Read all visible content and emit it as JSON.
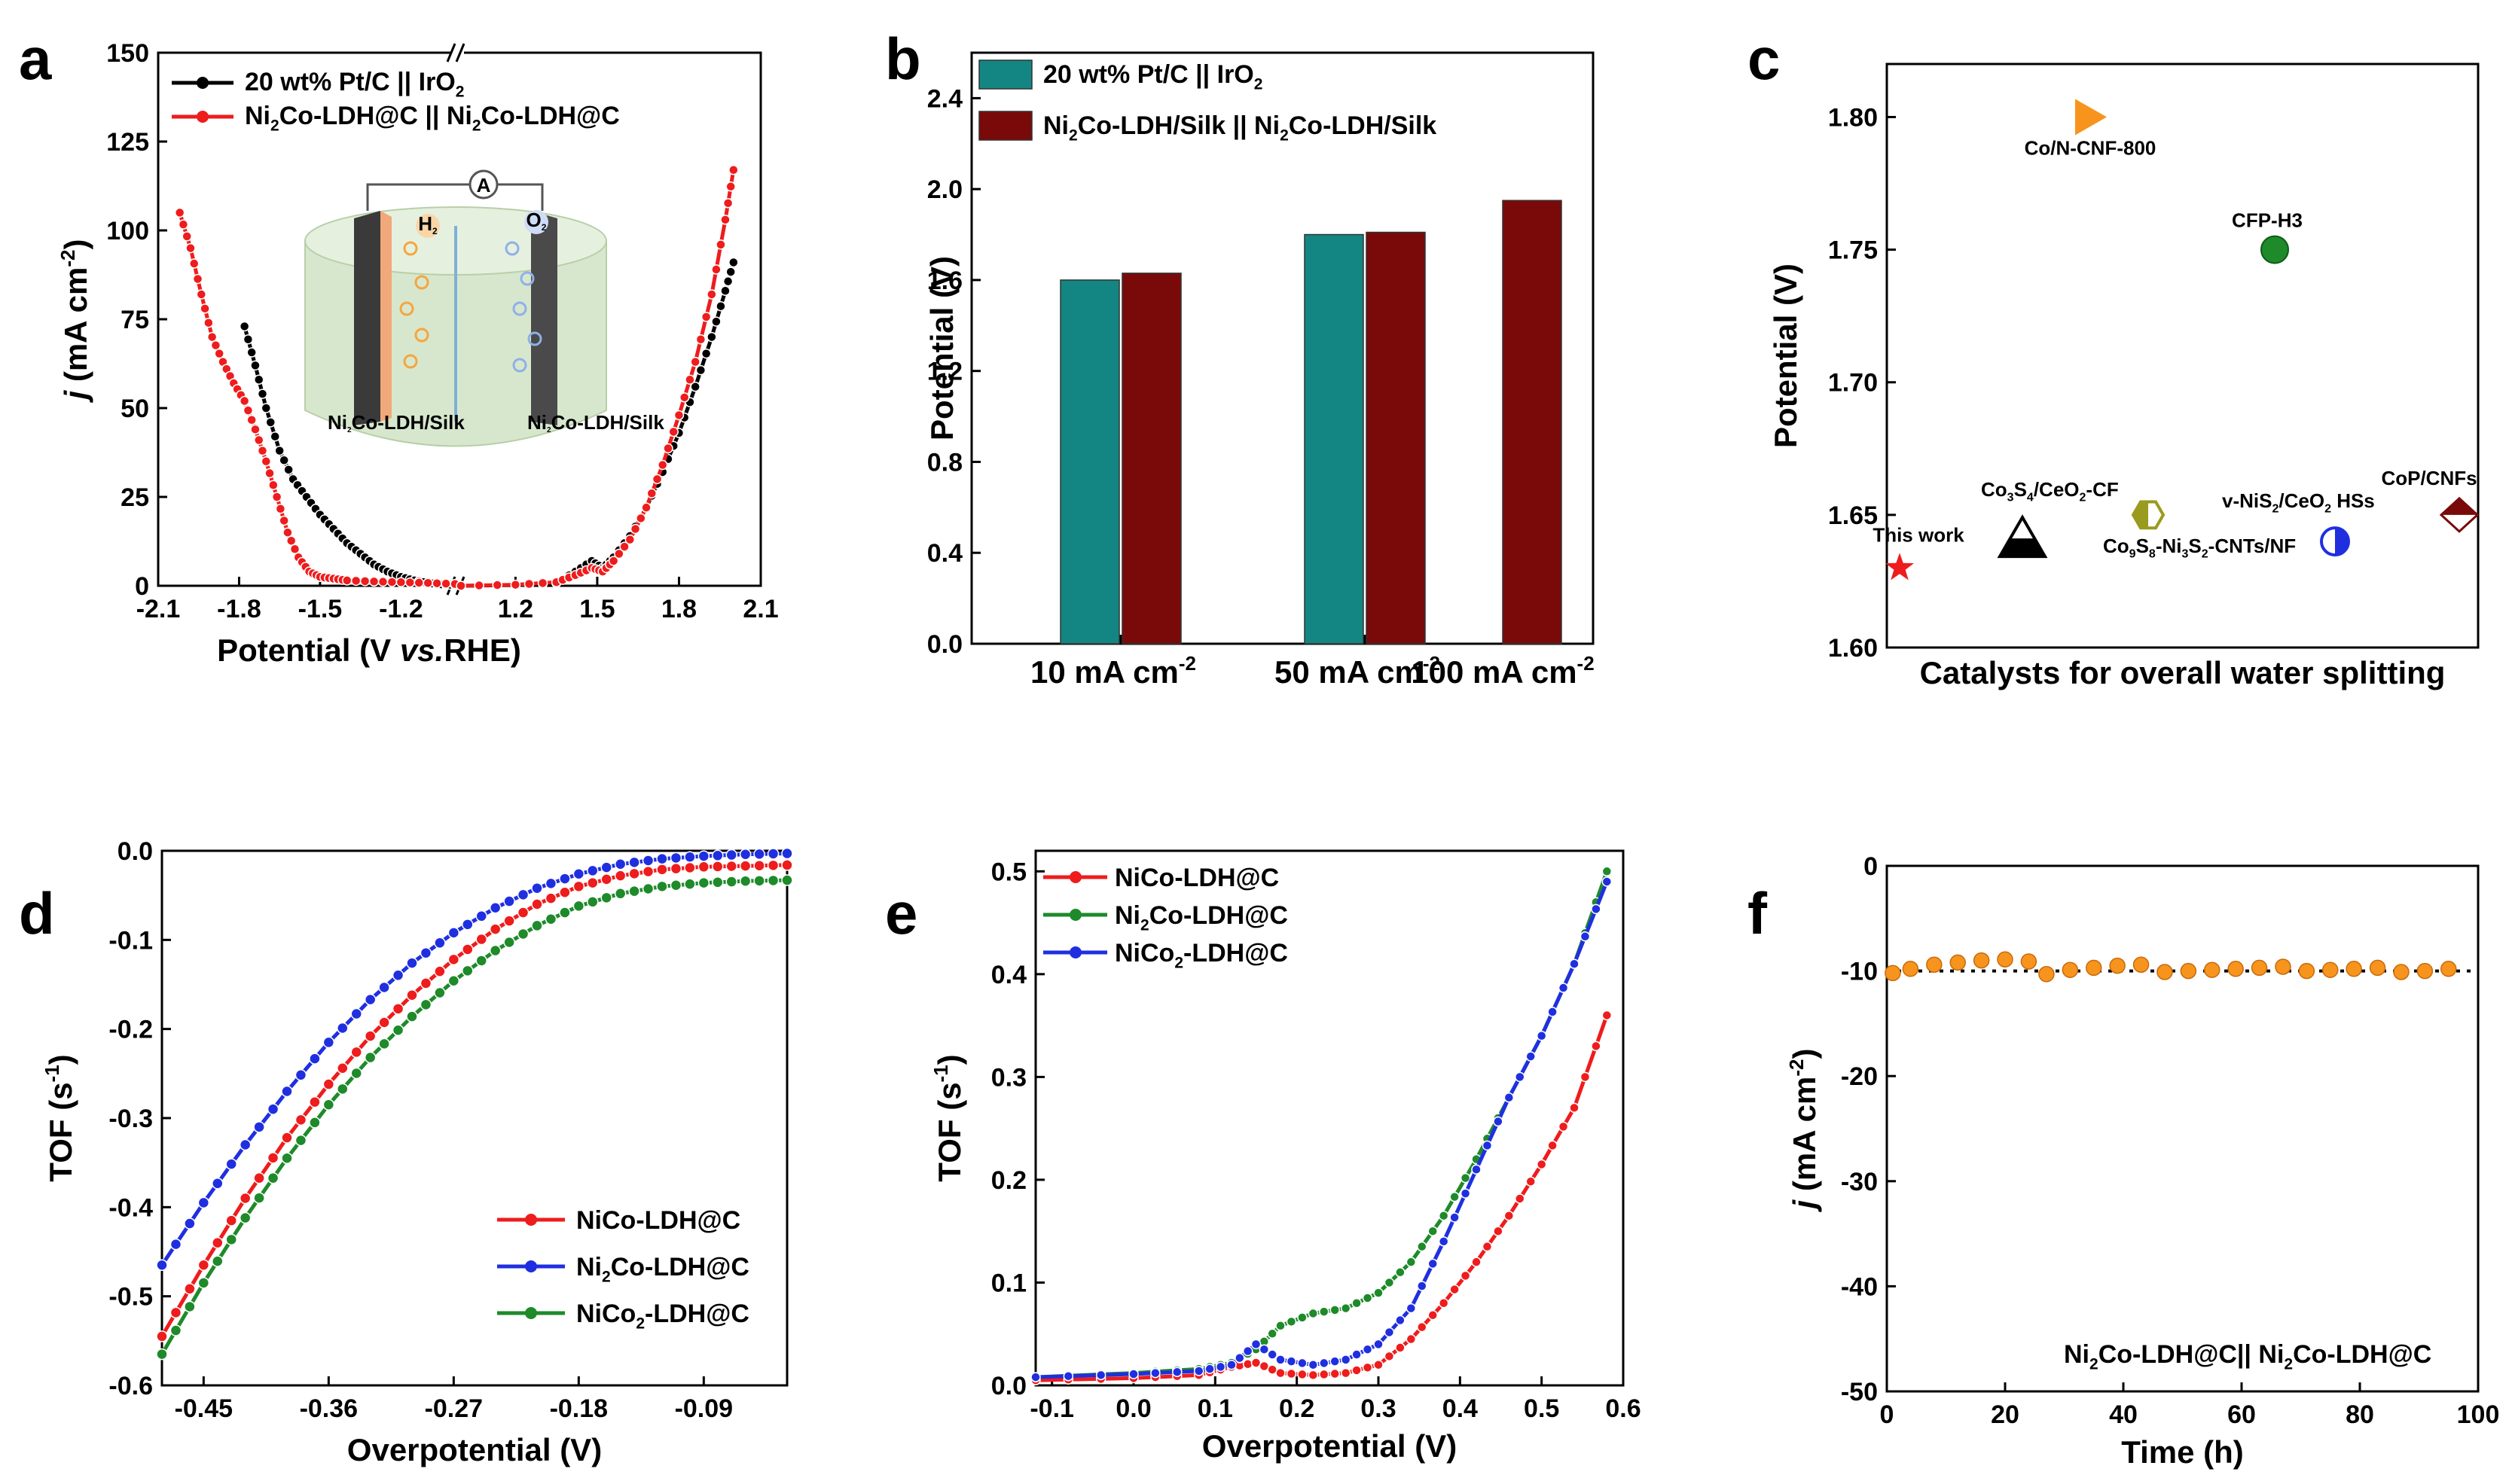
{
  "colors": {
    "black": "#000000",
    "red": "#ee1c1c",
    "blue": "#1f2fe0",
    "green": "#1e8a2a",
    "teal": "#138683",
    "maroon": "#7a0a0a",
    "orange": "#f7941d",
    "olive": "#9a9a1e"
  },
  "chart_data": [
    {
      "id": "a",
      "panel_label": "a",
      "type": "line",
      "xlabel_parts": [
        "Potential (V ",
        "vs.",
        "RHE)"
      ],
      "ylabel": "j (mA cm-2)",
      "ylabel_j": "j",
      "ylabel_unit": " (mA cm",
      "ylabel_exp": "-2",
      "ylabel_close": ")",
      "xlim_left": [
        -2.1,
        -1.0
      ],
      "xlim_right": [
        1.0,
        2.1
      ],
      "xticks_left": [
        -2.1,
        -1.8,
        -1.5,
        -1.2
      ],
      "xtick_left_labels": [
        "-2.1",
        "-1.8",
        "-1.5",
        "-1.2"
      ],
      "xticks_right": [
        1.2,
        1.5,
        1.8,
        2.1
      ],
      "xtick_right_labels": [
        "1.2",
        "1.5",
        "1.8",
        "2.1"
      ],
      "ylim": [
        0,
        150
      ],
      "yticks": [
        0,
        25,
        50,
        75,
        100,
        125,
        150
      ],
      "legend": [
        {
          "name": "20 wt% Pt/C || IrO",
          "sub": "2",
          "color": "#000000"
        },
        {
          "name": "Ni",
          "sub": "2",
          "name2": "Co-LDH@C || Ni",
          "sub2": "2",
          "name3": "Co-LDH@C",
          "color": "#ee1c1c"
        }
      ],
      "series": [
        {
          "name": "20 wt% Pt/C || IrO2",
          "color": "#000000",
          "left": [
            [
              -1.78,
              73
            ],
            [
              -1.74,
              62
            ],
            [
              -1.7,
              50
            ],
            [
              -1.65,
              38
            ],
            [
              -1.6,
              30
            ],
            [
              -1.55,
              25
            ],
            [
              -1.5,
              20
            ],
            [
              -1.45,
              16
            ],
            [
              -1.4,
              12
            ],
            [
              -1.35,
              9
            ],
            [
              -1.3,
              6
            ],
            [
              -1.25,
              4
            ],
            [
              -1.2,
              2.5
            ],
            [
              -1.15,
              1.5
            ],
            [
              -1.1,
              0.8
            ],
            [
              -1.05,
              0.4
            ],
            [
              -1.0,
              0.2
            ]
          ],
          "right": [
            [
              1.0,
              0
            ],
            [
              1.2,
              0.2
            ],
            [
              1.35,
              0.8
            ],
            [
              1.42,
              4
            ],
            [
              1.48,
              7
            ],
            [
              1.52,
              5
            ],
            [
              1.56,
              8
            ],
            [
              1.62,
              14
            ],
            [
              1.68,
              22
            ],
            [
              1.74,
              32
            ],
            [
              1.8,
              43
            ],
            [
              1.86,
              56
            ],
            [
              1.92,
              70
            ],
            [
              1.97,
              83
            ],
            [
              2.0,
              91
            ]
          ]
        },
        {
          "name": "Ni2Co-LDH@C || Ni2Co-LDH@C",
          "color": "#ee1c1c",
          "left": [
            [
              -2.02,
              105
            ],
            [
              -1.98,
              95
            ],
            [
              -1.94,
              82
            ],
            [
              -1.9,
              70
            ],
            [
              -1.86,
              63
            ],
            [
              -1.82,
              57
            ],
            [
              -1.78,
              52
            ],
            [
              -1.74,
              44
            ],
            [
              -1.7,
              35
            ],
            [
              -1.66,
              25
            ],
            [
              -1.62,
              15
            ],
            [
              -1.58,
              8
            ],
            [
              -1.54,
              4
            ],
            [
              -1.5,
              2.5
            ],
            [
              -1.45,
              2
            ],
            [
              -1.4,
              1.5
            ],
            [
              -1.3,
              1.2
            ],
            [
              -1.2,
              1
            ],
            [
              -1.1,
              0.8
            ],
            [
              -1.0,
              0.5
            ]
          ],
          "right": [
            [
              1.0,
              0
            ],
            [
              1.2,
              0.3
            ],
            [
              1.35,
              1
            ],
            [
              1.42,
              3
            ],
            [
              1.48,
              5
            ],
            [
              1.52,
              4
            ],
            [
              1.56,
              7
            ],
            [
              1.62,
              13
            ],
            [
              1.68,
              22
            ],
            [
              1.74,
              34
            ],
            [
              1.8,
              48
            ],
            [
              1.86,
              63
            ],
            [
              1.92,
              82
            ],
            [
              1.97,
              103
            ],
            [
              2.0,
              117
            ]
          ]
        }
      ],
      "inset_labels": {
        "h2": "H",
        "h2_sub": "2",
        "o2": "O",
        "o2_sub": "2",
        "ammeter": "A",
        "left_electrode": "Ni",
        "left_sub": "2",
        "left_rest": "Co-LDH/Silk",
        "right_electrode": "Ni",
        "right_sub": "2",
        "right_rest": "Co-LDH/Silk"
      }
    },
    {
      "id": "b",
      "panel_label": "b",
      "type": "bar",
      "ylabel": "Potential (V)",
      "categories": [
        {
          "pre": "10 mA cm",
          "sup": "-2"
        },
        {
          "pre": "50 mA cm",
          "sup": "-2"
        },
        {
          "pre": "100 mA cm",
          "sup": "-2"
        }
      ],
      "ylim": [
        0,
        2.6
      ],
      "yticks": [
        0.0,
        0.4,
        0.8,
        1.2,
        1.6,
        2.0,
        2.4
      ],
      "ytick_labels": [
        "0.0",
        "0.4",
        "0.8",
        "1.2",
        "1.6",
        "2.0",
        "2.4"
      ],
      "series": [
        {
          "name": "20 wt% Pt/C || IrO",
          "sub": "2",
          "color": "#138683",
          "values": [
            1.6,
            1.8,
            null
          ]
        },
        {
          "name": "Ni",
          "sub": "2",
          "name2": "Co-LDH/Silk || Ni",
          "sub2": "2",
          "name3": "Co-LDH/Silk",
          "color": "#7a0a0a",
          "values": [
            1.63,
            1.81,
            1.95
          ]
        }
      ]
    },
    {
      "id": "c",
      "panel_label": "c",
      "type": "scatter",
      "xlabel": "Catalysts for overall water splitting",
      "ylabel": "Potential (V)",
      "ylim": [
        1.6,
        1.82
      ],
      "yticks": [
        1.6,
        1.65,
        1.7,
        1.75,
        1.8
      ],
      "ytick_labels": [
        "1.60",
        "1.65",
        "1.70",
        "1.75",
        "1.80"
      ],
      "points": [
        {
          "label": "This work",
          "index": 1,
          "y": 1.63,
          "marker": "star",
          "color": "#ee1c1c"
        },
        {
          "label": "Co3S4/CeO2-CF",
          "text": [
            "Co",
            "3",
            "S",
            "4",
            "/CeO",
            "2",
            "-CF"
          ],
          "index": 2,
          "y": 1.64,
          "marker": "triangle",
          "color": "#000000"
        },
        {
          "label": "Co9S8-Ni3S2-CNTs/NF",
          "text": [
            "Co",
            "9",
            "S",
            "8",
            "-Ni",
            "3",
            "S",
            "2",
            "-CNTs/NF"
          ],
          "index": 3,
          "y": 1.65,
          "marker": "hexagon",
          "color": "#9a9a1e"
        },
        {
          "label": "Co/N-CNF-800",
          "text": [
            "Co/N-CNF-800"
          ],
          "index": 3,
          "y": 1.8,
          "marker": "triangle-right",
          "color": "#f7941d"
        },
        {
          "label": "CFP-H3",
          "text": [
            "CFP-H3"
          ],
          "index": 4,
          "y": 1.75,
          "marker": "circle",
          "color": "#1e8a2a"
        },
        {
          "label": "v-NiS2/CeO2 HSs",
          "text": [
            "v-NiS",
            "2",
            "/CeO",
            "2",
            " HSs"
          ],
          "index": 4,
          "y": 1.64,
          "marker": "half-circle",
          "color": "#1f2fe0"
        },
        {
          "label": "CoP/CNFs",
          "text": [
            "CoP/CNFs"
          ],
          "index": 5,
          "y": 1.65,
          "marker": "diamond",
          "color": "#7a0a0a"
        }
      ]
    },
    {
      "id": "d",
      "panel_label": "d",
      "type": "line",
      "xlabel": "Overpotential (V)",
      "ylabel": "TOF (s-1)",
      "ylabel_main": "TOF (s",
      "ylabel_exp": "-1",
      "ylabel_close": ")",
      "xlim": [
        -0.48,
        -0.03
      ],
      "xticks": [
        -0.45,
        -0.36,
        -0.27,
        -0.18,
        -0.09
      ],
      "xtick_labels": [
        "-0.45",
        "-0.36",
        "-0.27",
        "-0.18",
        "-0.09"
      ],
      "ylim": [
        -0.6,
        0.0
      ],
      "yticks": [
        -0.6,
        -0.5,
        -0.4,
        -0.3,
        -0.2,
        -0.1,
        0.0
      ],
      "ytick_labels": [
        "-0.6",
        "-0.5",
        "-0.4",
        "-0.3",
        "-0.2",
        "-0.1",
        "0.0"
      ],
      "legend": [
        {
          "text": [
            "NiCo-LDH@C"
          ],
          "color": "#ee1c1c"
        },
        {
          "text": [
            "Ni",
            "2",
            "Co-LDH@C"
          ],
          "color": "#1f2fe0"
        },
        {
          "text": [
            "NiCo",
            "2",
            "-LDH@C"
          ],
          "color": "#1e8a2a"
        }
      ],
      "series": [
        {
          "name": "NiCo-LDH@C",
          "color": "#ee1c1c",
          "x": [
            -0.48,
            -0.45,
            -0.42,
            -0.39,
            -0.36,
            -0.33,
            -0.3,
            -0.27,
            -0.24,
            -0.21,
            -0.18,
            -0.15,
            -0.12,
            -0.09,
            -0.06,
            -0.03
          ],
          "y": [
            -0.545,
            -0.465,
            -0.39,
            -0.322,
            -0.262,
            -0.208,
            -0.162,
            -0.122,
            -0.088,
            -0.06,
            -0.04,
            -0.028,
            -0.021,
            -0.018,
            -0.017,
            -0.016
          ]
        },
        {
          "name": "Ni2Co-LDH@C",
          "color": "#1f2fe0",
          "x": [
            -0.48,
            -0.45,
            -0.42,
            -0.39,
            -0.36,
            -0.33,
            -0.3,
            -0.27,
            -0.24,
            -0.21,
            -0.18,
            -0.15,
            -0.12,
            -0.09,
            -0.06,
            -0.03
          ],
          "y": [
            -0.465,
            -0.395,
            -0.33,
            -0.27,
            -0.215,
            -0.167,
            -0.126,
            -0.092,
            -0.064,
            -0.042,
            -0.026,
            -0.015,
            -0.009,
            -0.006,
            -0.004,
            -0.003
          ]
        },
        {
          "name": "NiCo2-LDH@C",
          "color": "#1e8a2a",
          "x": [
            -0.48,
            -0.45,
            -0.42,
            -0.39,
            -0.36,
            -0.33,
            -0.3,
            -0.27,
            -0.24,
            -0.21,
            -0.18,
            -0.15,
            -0.12,
            -0.09,
            -0.06,
            -0.03
          ],
          "y": [
            -0.565,
            -0.485,
            -0.412,
            -0.345,
            -0.285,
            -0.232,
            -0.186,
            -0.146,
            -0.112,
            -0.084,
            -0.062,
            -0.048,
            -0.04,
            -0.036,
            -0.034,
            -0.033
          ]
        }
      ]
    },
    {
      "id": "e",
      "panel_label": "e",
      "type": "line",
      "xlabel": "Overpotential (V)",
      "ylabel": "TOF (s-1)",
      "ylabel_main": "TOF (s",
      "ylabel_exp": "-1",
      "ylabel_close": ")",
      "xlim": [
        -0.12,
        0.6
      ],
      "xticks": [
        -0.1,
        0.0,
        0.1,
        0.2,
        0.3,
        0.4,
        0.5,
        0.6
      ],
      "xtick_labels": [
        "-0.1",
        "0.0",
        "0.1",
        "0.2",
        "0.3",
        "0.4",
        "0.5",
        "0.6"
      ],
      "ylim": [
        0.0,
        0.52
      ],
      "yticks": [
        0.0,
        0.1,
        0.2,
        0.3,
        0.4,
        0.5
      ],
      "ytick_labels": [
        "0.0",
        "0.1",
        "0.2",
        "0.3",
        "0.4",
        "0.5"
      ],
      "legend": [
        {
          "text": [
            "NiCo-LDH@C"
          ],
          "color": "#ee1c1c"
        },
        {
          "text": [
            "Ni",
            "2",
            "Co-LDH@C"
          ],
          "color": "#1e8a2a"
        },
        {
          "text": [
            "NiCo",
            "2",
            "-LDH@C"
          ],
          "color": "#1f2fe0"
        }
      ],
      "series": [
        {
          "name": "NiCo-LDH@C",
          "color": "#ee1c1c",
          "x": [
            -0.12,
            0.0,
            0.08,
            0.12,
            0.15,
            0.18,
            0.22,
            0.26,
            0.3,
            0.34,
            0.38,
            0.42,
            0.46,
            0.5,
            0.54,
            0.58
          ],
          "y": [
            0.005,
            0.007,
            0.01,
            0.018,
            0.022,
            0.012,
            0.01,
            0.012,
            0.02,
            0.045,
            0.08,
            0.12,
            0.165,
            0.215,
            0.27,
            0.36
          ]
        },
        {
          "name": "Ni2Co-LDH@C",
          "color": "#1e8a2a",
          "x": [
            -0.12,
            0.0,
            0.08,
            0.12,
            0.15,
            0.18,
            0.22,
            0.26,
            0.3,
            0.34,
            0.38,
            0.42,
            0.46,
            0.5,
            0.54,
            0.58
          ],
          "y": [
            0.008,
            0.012,
            0.016,
            0.022,
            0.035,
            0.058,
            0.07,
            0.075,
            0.09,
            0.12,
            0.165,
            0.22,
            0.28,
            0.34,
            0.41,
            0.5
          ]
        },
        {
          "name": "NiCo2-LDH@C",
          "color": "#1f2fe0",
          "x": [
            -0.12,
            0.0,
            0.08,
            0.12,
            0.15,
            0.18,
            0.22,
            0.26,
            0.3,
            0.34,
            0.38,
            0.42,
            0.46,
            0.5,
            0.54,
            0.58
          ],
          "y": [
            0.008,
            0.011,
            0.014,
            0.02,
            0.04,
            0.025,
            0.02,
            0.025,
            0.04,
            0.075,
            0.14,
            0.21,
            0.28,
            0.34,
            0.41,
            0.49
          ]
        }
      ]
    },
    {
      "id": "f",
      "panel_label": "f",
      "type": "scatter",
      "xlabel": "Time (h)",
      "ylabel": "j (mA cm-2)",
      "ylabel_j": "j",
      "ylabel_unit": " (mA cm",
      "ylabel_exp": "-2",
      "ylabel_close": ")",
      "xlim": [
        0,
        100
      ],
      "xticks": [
        0,
        20,
        40,
        60,
        80,
        100
      ],
      "xtick_labels": [
        "0",
        "20",
        "40",
        "60",
        "80",
        "100"
      ],
      "ylim": [
        -50,
        0
      ],
      "yticks": [
        0,
        -10,
        -20,
        -30,
        -40,
        -50
      ],
      "ytick_labels": [
        "0",
        "-10",
        "-20",
        "-30",
        "-40",
        "-50"
      ],
      "reference_y": -10,
      "annotation": [
        "Ni",
        "2",
        "Co-LDH@C|| Ni",
        "2",
        "Co-LDH@C"
      ],
      "points_x": [
        1,
        4,
        8,
        12,
        16,
        20,
        24,
        27,
        31,
        35,
        39,
        43,
        47,
        51,
        55,
        59,
        63,
        67,
        71,
        75,
        79,
        83,
        87,
        91,
        95
      ],
      "points_y": [
        -10.2,
        -9.8,
        -9.4,
        -9.2,
        -9.0,
        -8.9,
        -9.1,
        -10.3,
        -9.9,
        -9.7,
        -9.5,
        -9.4,
        -10.1,
        -10.0,
        -9.9,
        -9.8,
        -9.7,
        -9.6,
        -10.0,
        -9.9,
        -9.8,
        -9.7,
        -10.1,
        -10.0,
        -9.8
      ]
    }
  ]
}
